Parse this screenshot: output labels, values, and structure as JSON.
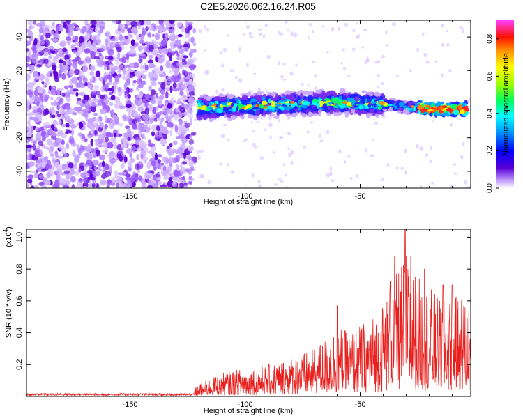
{
  "title": "C2E5.2026.062.16.24.R05",
  "colors": {
    "snr_line": "#e8201e",
    "axis": "#000000",
    "dot_light": "#c9a6ff",
    "dot_mid": "#9b59ff",
    "dot_dark": "#5a00d6"
  },
  "chart_data": [
    {
      "type": "heatmap",
      "title": "",
      "xlabel": "Height of straight line (km)",
      "ylabel": "Frequency (Hz)",
      "xlim": [
        -195,
        -2
      ],
      "ylim": [
        -50,
        50
      ],
      "xticks": [
        -150,
        -100,
        -50
      ],
      "xtick_labels": [
        "-150",
        "-100",
        "-50"
      ],
      "yticks": [
        -40,
        -20,
        0,
        20,
        40
      ],
      "ytick_labels": [
        "-40",
        "-20",
        "0",
        "20",
        "40"
      ],
      "noise_region_x": [
        -195,
        -122
      ],
      "signal_band": [
        {
          "x": -120,
          "freq": -2
        },
        {
          "x": -100,
          "freq": -1
        },
        {
          "x": -80,
          "freq": 0
        },
        {
          "x": -60,
          "freq": 1
        },
        {
          "x": -40,
          "freq": 0
        },
        {
          "x": -20,
          "freq": -3
        },
        {
          "x": -5,
          "freq": -3
        }
      ],
      "colorbar": {
        "label": "Normalized spectral amplitude",
        "range": [
          0.0,
          0.9
        ],
        "ticks": [
          0.0,
          0.2,
          0.4,
          0.6,
          0.8
        ],
        "tick_labels": [
          "0.0",
          "0.2",
          "0.4",
          "0.6",
          "0.8"
        ]
      }
    },
    {
      "type": "line",
      "title": "",
      "xlabel": "Height of straight line (km)",
      "ylabel": "SNR (10 * v/v)",
      "exponent_label": "(x10",
      "exponent_power": "4",
      "exponent_close": ")",
      "xlim": [
        -195,
        -2
      ],
      "ylim": [
        0,
        1.05
      ],
      "xticks": [
        -150,
        -100,
        -50
      ],
      "xtick_labels": [
        "-150",
        "-100",
        "-50"
      ],
      "yticks": [
        0.2,
        0.4,
        0.6,
        0.8,
        1.0
      ],
      "ytick_labels": [
        "0.2",
        "0.4",
        "0.6",
        "0.8",
        "1.0"
      ],
      "series": [
        {
          "name": "SNR",
          "envelope_x": [
            -195,
            -125,
            -120,
            -110,
            -100,
            -90,
            -80,
            -70,
            -65,
            -60,
            -55,
            -50,
            -45,
            -40,
            -35,
            -30,
            -25,
            -20,
            -15,
            -10,
            -5,
            -2
          ],
          "envelope_y": [
            0.02,
            0.02,
            0.08,
            0.15,
            0.18,
            0.2,
            0.25,
            0.3,
            0.38,
            0.45,
            0.4,
            0.45,
            0.5,
            0.6,
            0.75,
            0.9,
            0.75,
            0.7,
            0.6,
            0.62,
            0.65,
            0.6
          ],
          "peaks": [
            {
              "x": -30.5,
              "y": 1.05
            },
            {
              "x": -35,
              "y": 0.88
            },
            {
              "x": -28,
              "y": 0.88
            },
            {
              "x": -22,
              "y": 0.8
            },
            {
              "x": -37,
              "y": 0.72
            },
            {
              "x": -14,
              "y": 0.7
            },
            {
              "x": -60,
              "y": 0.57
            },
            {
              "x": -10,
              "y": 0.7
            }
          ]
        }
      ]
    }
  ]
}
